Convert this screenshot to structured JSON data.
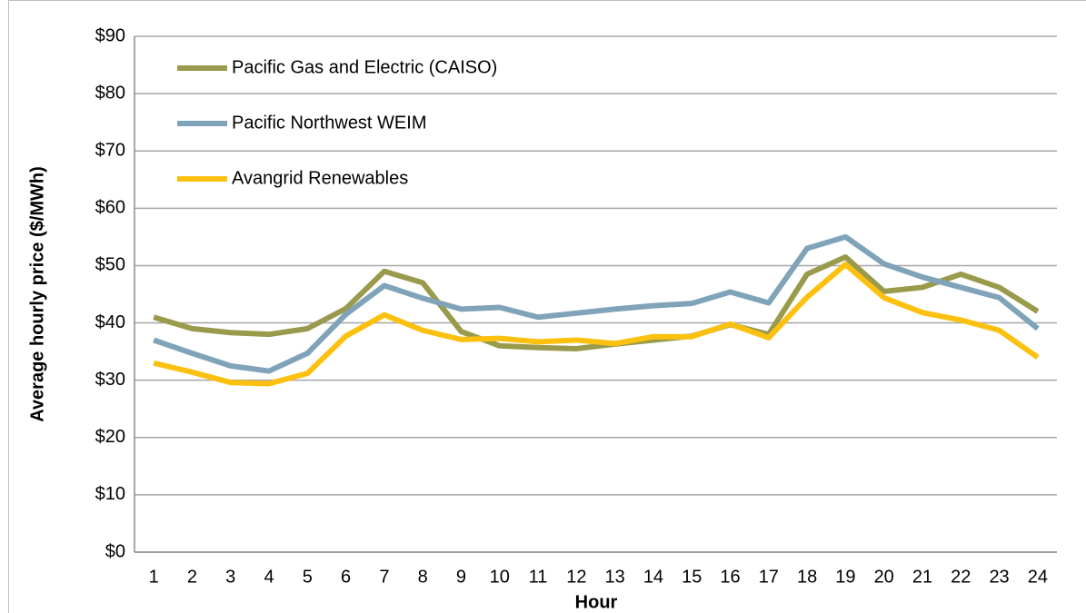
{
  "chart_data": {
    "type": "line",
    "xlabel": "Hour",
    "ylabel": "Average hourly price ($/MWh)",
    "categories": [
      "1",
      "2",
      "3",
      "4",
      "5",
      "6",
      "7",
      "8",
      "9",
      "10",
      "11",
      "12",
      "13",
      "14",
      "15",
      "16",
      "17",
      "18",
      "19",
      "20",
      "21",
      "22",
      "23",
      "24"
    ],
    "series": [
      {
        "name": "Pacific Gas and Electric (CAISO)",
        "color": "#9a9a4c",
        "values": [
          41,
          39,
          38.3,
          38,
          39,
          42.5,
          49,
          47,
          38.5,
          36,
          35.7,
          35.5,
          36.3,
          37,
          37.7,
          39.7,
          38,
          48.5,
          51.5,
          45.5,
          46.2,
          48.5,
          46.2,
          42
        ]
      },
      {
        "name": "Pacific Northwest WEIM",
        "color": "#7fa3b8",
        "values": [
          37,
          34.7,
          32.5,
          31.6,
          34.7,
          41.5,
          46.5,
          44.3,
          42.4,
          42.7,
          41,
          41.7,
          42.4,
          43,
          43.4,
          45.4,
          43.5,
          53,
          55,
          50.3,
          48,
          46.2,
          44.4,
          39
        ]
      },
      {
        "name": "Avangrid Renewables",
        "color": "#fcc10f",
        "values": [
          33,
          31.4,
          29.6,
          29.4,
          31.2,
          37.7,
          41.4,
          38.7,
          37.1,
          37.3,
          36.7,
          37,
          36.4,
          37.6,
          37.6,
          39.8,
          37.4,
          44.5,
          50.2,
          44.4,
          41.8,
          40.5,
          38.7,
          34
        ]
      }
    ],
    "ylim": [
      0,
      90
    ],
    "yticks": [
      {
        "value": 0,
        "label": "$0"
      },
      {
        "value": 10,
        "label": "$10"
      },
      {
        "value": 20,
        "label": "$20"
      },
      {
        "value": 30,
        "label": "$30"
      },
      {
        "value": 40,
        "label": "$40"
      },
      {
        "value": 50,
        "label": "$50"
      },
      {
        "value": 60,
        "label": "$60"
      },
      {
        "value": 70,
        "label": "$70"
      },
      {
        "value": 80,
        "label": "$80"
      },
      {
        "value": 90,
        "label": "$90"
      }
    ],
    "grid": true,
    "legend": "upper left"
  }
}
